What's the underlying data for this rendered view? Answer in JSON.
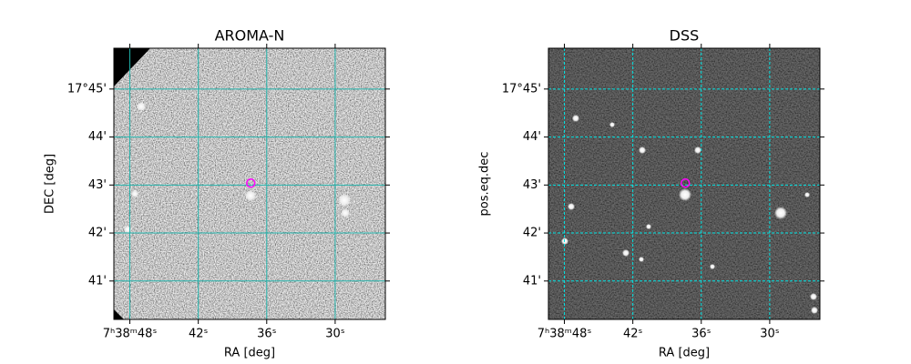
{
  "chart_data": [
    {
      "type": "image",
      "title": "AROMA-N",
      "x_label": "RA [deg]",
      "y_label": "DEC [deg]",
      "xlim": [
        49.4,
        25.6
      ],
      "ylim": [
        40.2,
        45.85
      ],
      "xticks": [
        {
          "value": 48,
          "label": "7ʰ38ᵐ48ˢ"
        },
        {
          "value": 42,
          "label": "42ˢ"
        },
        {
          "value": 36,
          "label": "36ˢ"
        },
        {
          "value": 30,
          "label": "30ˢ"
        }
      ],
      "yticks": [
        {
          "value": 41,
          "label": "41'"
        },
        {
          "value": 42,
          "label": "42'"
        },
        {
          "value": 43,
          "label": "43'"
        },
        {
          "value": 44,
          "label": "44'"
        },
        {
          "value": 45,
          "label": "17°45'"
        }
      ],
      "grid": true,
      "grid_color": "#20b2aa",
      "grid_style": "solid",
      "target": {
        "ra": 37.4,
        "dec": 43.04,
        "color": "#ff00ff"
      }
    },
    {
      "type": "image",
      "title": "DSS",
      "x_label": "RA [deg]",
      "y_label": "pos.eq.dec",
      "xlim": [
        49.4,
        25.6
      ],
      "ylim": [
        40.2,
        45.85
      ],
      "xticks": [
        {
          "value": 48,
          "label": "7ʰ38ᵐ48ˢ"
        },
        {
          "value": 42,
          "label": "42ˢ"
        },
        {
          "value": 36,
          "label": "36ˢ"
        },
        {
          "value": 30,
          "label": "30ˢ"
        }
      ],
      "yticks": [
        {
          "value": 41,
          "label": "41'"
        },
        {
          "value": 42,
          "label": "42'"
        },
        {
          "value": 43,
          "label": "43'"
        },
        {
          "value": 44,
          "label": "44'"
        },
        {
          "value": 45,
          "label": "17°45'"
        }
      ],
      "grid": true,
      "grid_color": "#00e5e5",
      "grid_style": "dashed",
      "target": {
        "ra": 37.4,
        "dec": 43.04,
        "color": "#ff00ff"
      }
    }
  ]
}
